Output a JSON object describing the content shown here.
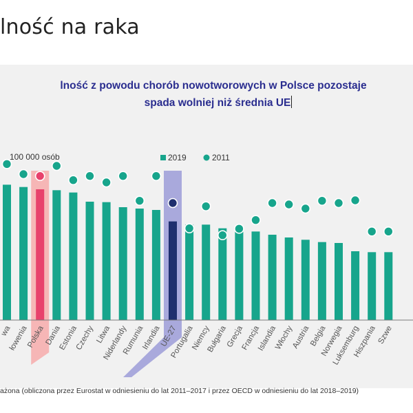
{
  "slide": {
    "title": "lność na raka",
    "footnote": "ażona (obliczona przez Eurostat w odniesieniu do lat 2011–2017 i przez OECD w odniesieniu do lat 2018–2019)"
  },
  "chart_data": {
    "type": "bar",
    "title_line1": "lność z powodu chorób nowotworowych w Polsce pozostaje",
    "title_line2": "spada wolniej niż średnia UE",
    "ylabel": "100 000 osób",
    "ylim": [
      0,
      360
    ],
    "categories": [
      "wa",
      "łowenia",
      "Polska",
      "Dania",
      "Estonia",
      "Czechy",
      "Litwa",
      "Niderlandy",
      "Rumunia",
      "Irlandia",
      "UE-27",
      "Portugalia",
      "Niemcy",
      "Bułgaria",
      "Grecja",
      "Francja",
      "Islandia",
      "Włochy",
      "Austria",
      "Belgia",
      "Norwegia",
      "Luksemburg",
      "Hiszpania",
      "Szwe"
    ],
    "series": [
      {
        "name": "2019",
        "values": [
          295,
          290,
          285,
          283,
          278,
          258,
          257,
          246,
          243,
          240,
          215,
          208,
          208,
          200,
          198,
          193,
          186,
          180,
          175,
          170,
          168,
          150,
          148,
          148
        ]
      },
      {
        "name": "2011",
        "values": [
          340,
          318,
          314,
          336,
          305,
          314,
          300,
          314,
          260,
          314,
          255,
          200,
          248,
          185,
          199,
          218,
          255,
          252,
          243,
          260,
          255,
          261,
          193,
          193
        ]
      }
    ],
    "highlight": {
      "Polska": "#e8416c",
      "UE-27": "#1f2f6e"
    },
    "colors": {
      "bar": "#17a58c",
      "dot": "#17a58c",
      "polska_band": "#f6b6b6",
      "eu_band": "#a9a9dc",
      "axis": "#7a7a7a"
    }
  }
}
